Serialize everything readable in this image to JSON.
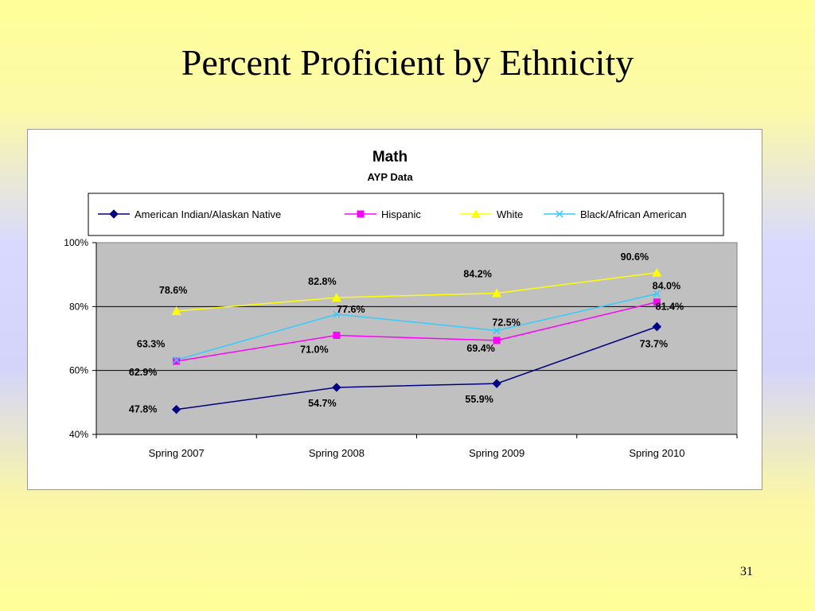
{
  "slide": {
    "title": "Percent Proficient by Ethnicity",
    "page_number": "31"
  },
  "chart_data": {
    "type": "line",
    "title": "Math",
    "subtitle": "AYP Data",
    "categories": [
      "Spring 2007",
      "Spring 2008",
      "Spring 2009",
      "Spring 2010"
    ],
    "ylim": [
      40,
      100
    ],
    "yticks": [
      "40%",
      "60%",
      "80%",
      "100%"
    ],
    "grid": true,
    "legend": "top",
    "plot_background": "#c0c0c0",
    "series": [
      {
        "name": "American Indian/Alaskan Native",
        "color": "#000080",
        "marker": "diamond",
        "values": [
          47.8,
          54.7,
          55.9,
          73.7
        ],
        "labels": [
          "47.8%",
          "54.7%",
          "55.9%",
          "73.7%"
        ]
      },
      {
        "name": "Hispanic",
        "color": "#ff00ff",
        "marker": "square",
        "values": [
          62.9,
          71.0,
          69.4,
          81.4
        ],
        "labels": [
          "62.9%",
          "71.0%",
          "69.4%",
          "81.4%"
        ]
      },
      {
        "name": "White",
        "color": "#ffff00",
        "marker": "triangle",
        "values": [
          78.6,
          82.8,
          84.2,
          90.6
        ],
        "labels": [
          "78.6%",
          "82.8%",
          "84.2%",
          "90.6%"
        ]
      },
      {
        "name": "Black/African American",
        "color": "#33ccff",
        "marker": "x",
        "values": [
          63.3,
          77.6,
          72.5,
          84.0
        ],
        "labels": [
          "63.3%",
          "77.6%",
          "72.5%",
          "84.0%"
        ]
      }
    ]
  }
}
